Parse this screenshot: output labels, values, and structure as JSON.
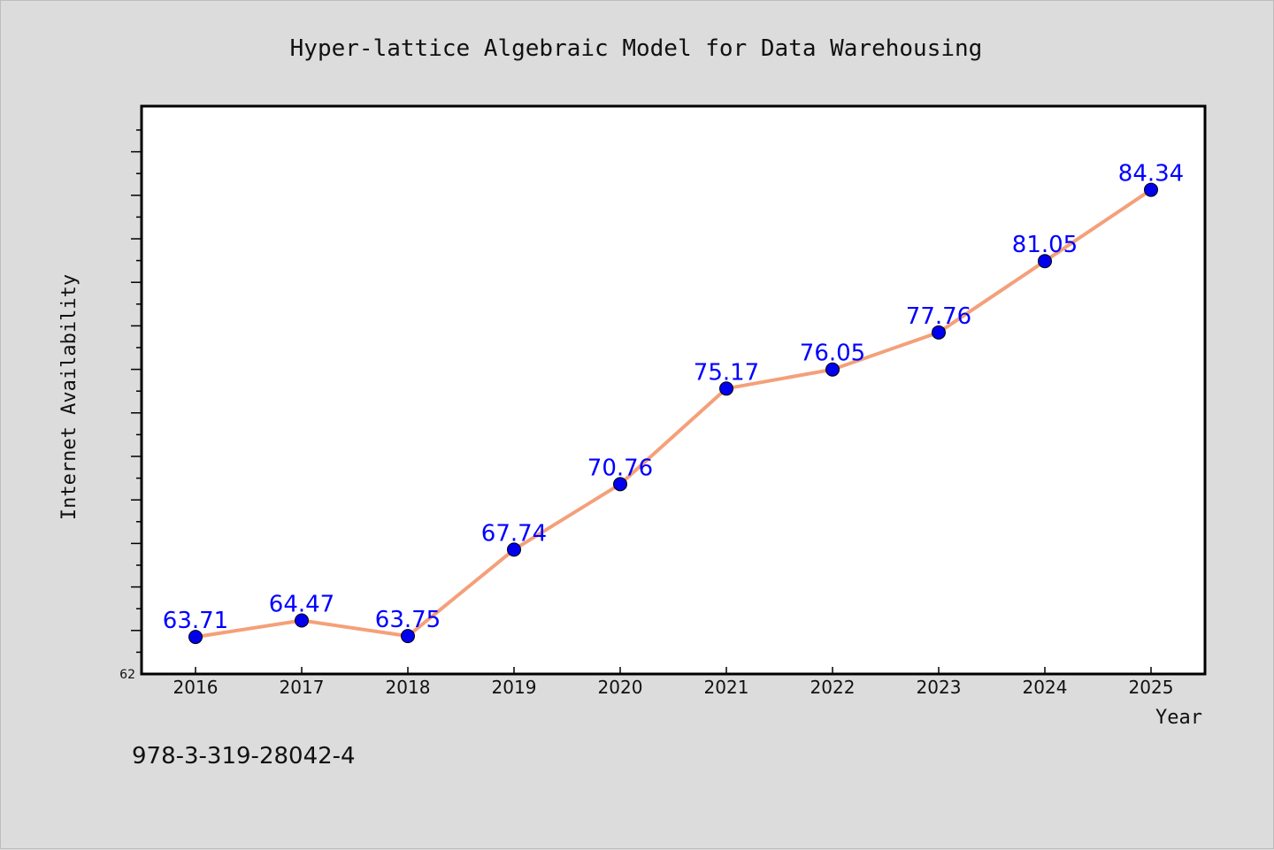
{
  "chart_data": {
    "type": "line",
    "title": "Hyper-lattice Algebraic Model for Data Warehousing",
    "xlabel": "Year",
    "ylabel": "Internet Availability",
    "categories": [
      "2016",
      "2017",
      "2018",
      "2019",
      "2020",
      "2021",
      "2022",
      "2023",
      "2024",
      "2025"
    ],
    "values": [
      63.71,
      64.47,
      63.75,
      67.74,
      70.76,
      75.17,
      76.05,
      77.76,
      81.05,
      84.34
    ],
    "data_labels": [
      "63.71",
      "64.47",
      "63.75",
      "67.74",
      "70.76",
      "75.17",
      "76.05",
      "77.76",
      "81.05",
      "84.34"
    ],
    "ylim": [
      62,
      88.2
    ],
    "ytick_label": "62",
    "line_color": "#f4a07a",
    "marker_color": "#0000ee",
    "label_color": "#0000ff",
    "grid": false,
    "legend": "none"
  },
  "footer_text": "978-3-319-28042-4"
}
